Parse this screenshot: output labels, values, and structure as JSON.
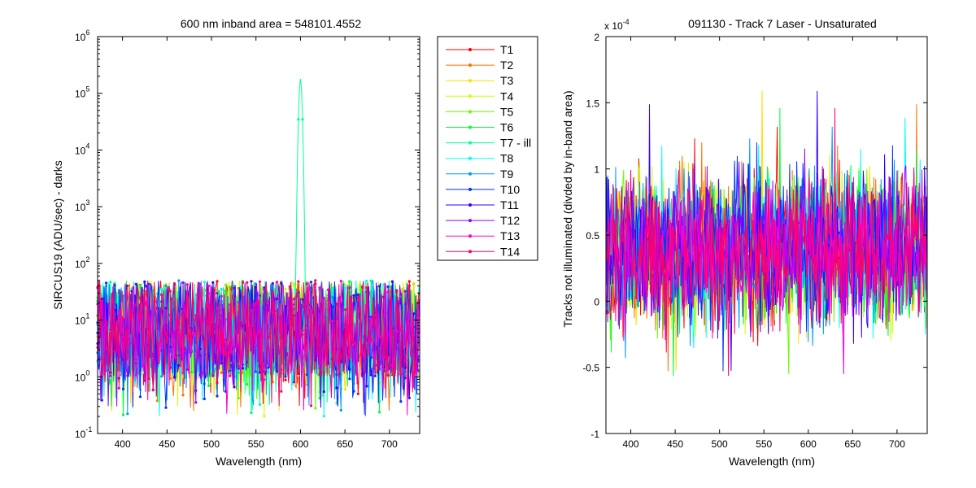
{
  "chart_data": [
    {
      "type": "line",
      "title": "600 nm     inband area = 548101.4552",
      "xlabel": "Wavelength (nm)",
      "ylabel": "SIRCUS19  (ADU/sec) - darks",
      "xlim": [
        372,
        734
      ],
      "ylim": [
        0.1,
        1000000
      ],
      "yscale": "log",
      "x_ticks": [
        "400",
        "450",
        "500",
        "550",
        "600",
        "650",
        "700"
      ],
      "y_ticks": [
        {
          "base": "10",
          "exp": "-1"
        },
        {
          "base": "10",
          "exp": "0"
        },
        {
          "base": "10",
          "exp": "1"
        },
        {
          "base": "10",
          "exp": "2"
        },
        {
          "base": "10",
          "exp": "3"
        },
        {
          "base": "10",
          "exp": "4"
        },
        {
          "base": "10",
          "exp": "5"
        },
        {
          "base": "10",
          "exp": "6"
        }
      ],
      "grid": false,
      "legend_position": "outside-right",
      "series": [
        {
          "name": "T1",
          "color": "#ff0000"
        },
        {
          "name": "T2",
          "color": "#ff6f00"
        },
        {
          "name": "T3",
          "color": "#ffdd00"
        },
        {
          "name": "T4",
          "color": "#ccff00"
        },
        {
          "name": "T5",
          "color": "#66ff00"
        },
        {
          "name": "T6",
          "color": "#00ff33"
        },
        {
          "name": "T7 - ill",
          "color": "#00ff99"
        },
        {
          "name": "T8",
          "color": "#00ffff"
        },
        {
          "name": "T9",
          "color": "#0099ff"
        },
        {
          "name": "T10",
          "color": "#0033ff"
        },
        {
          "name": "T11",
          "color": "#3300ff"
        },
        {
          "name": "T12",
          "color": "#9900ff"
        },
        {
          "name": "T13",
          "color": "#ff00cc"
        },
        {
          "name": "T14",
          "color": "#ff0066"
        }
      ],
      "typical_range": [
        1,
        50
      ],
      "noise_floor_min": 0.2,
      "peak": {
        "series": "T7 - ill",
        "x": 600,
        "y": 180000
      }
    },
    {
      "type": "line",
      "title": "091130 - Track 7 Laser - Unsaturated",
      "xlabel": "Wavelength (nm)",
      "ylabel": "Tracks not illuminated (divded by in-band area)",
      "xlim": [
        372,
        734
      ],
      "ylim": [
        -1,
        2
      ],
      "y_multiplier": {
        "base": "x 10",
        "exp": "-4"
      },
      "x_ticks": [
        "400",
        "450",
        "500",
        "550",
        "600",
        "650",
        "700"
      ],
      "y_ticks": [
        "-1",
        "-0.5",
        "0",
        "0.5",
        "1",
        "1.5",
        "2"
      ],
      "grid": false,
      "series_colors": [
        "#ff0000",
        "#ff6f00",
        "#ffdd00",
        "#ccff00",
        "#66ff00",
        "#00ff33",
        "#00ffff",
        "#0099ff",
        "#0033ff",
        "#3300ff",
        "#9900ff",
        "#ff00cc",
        "#ff0066"
      ],
      "noise_center": 0.4,
      "noise_range": [
        -0.78,
        1.6
      ]
    }
  ]
}
